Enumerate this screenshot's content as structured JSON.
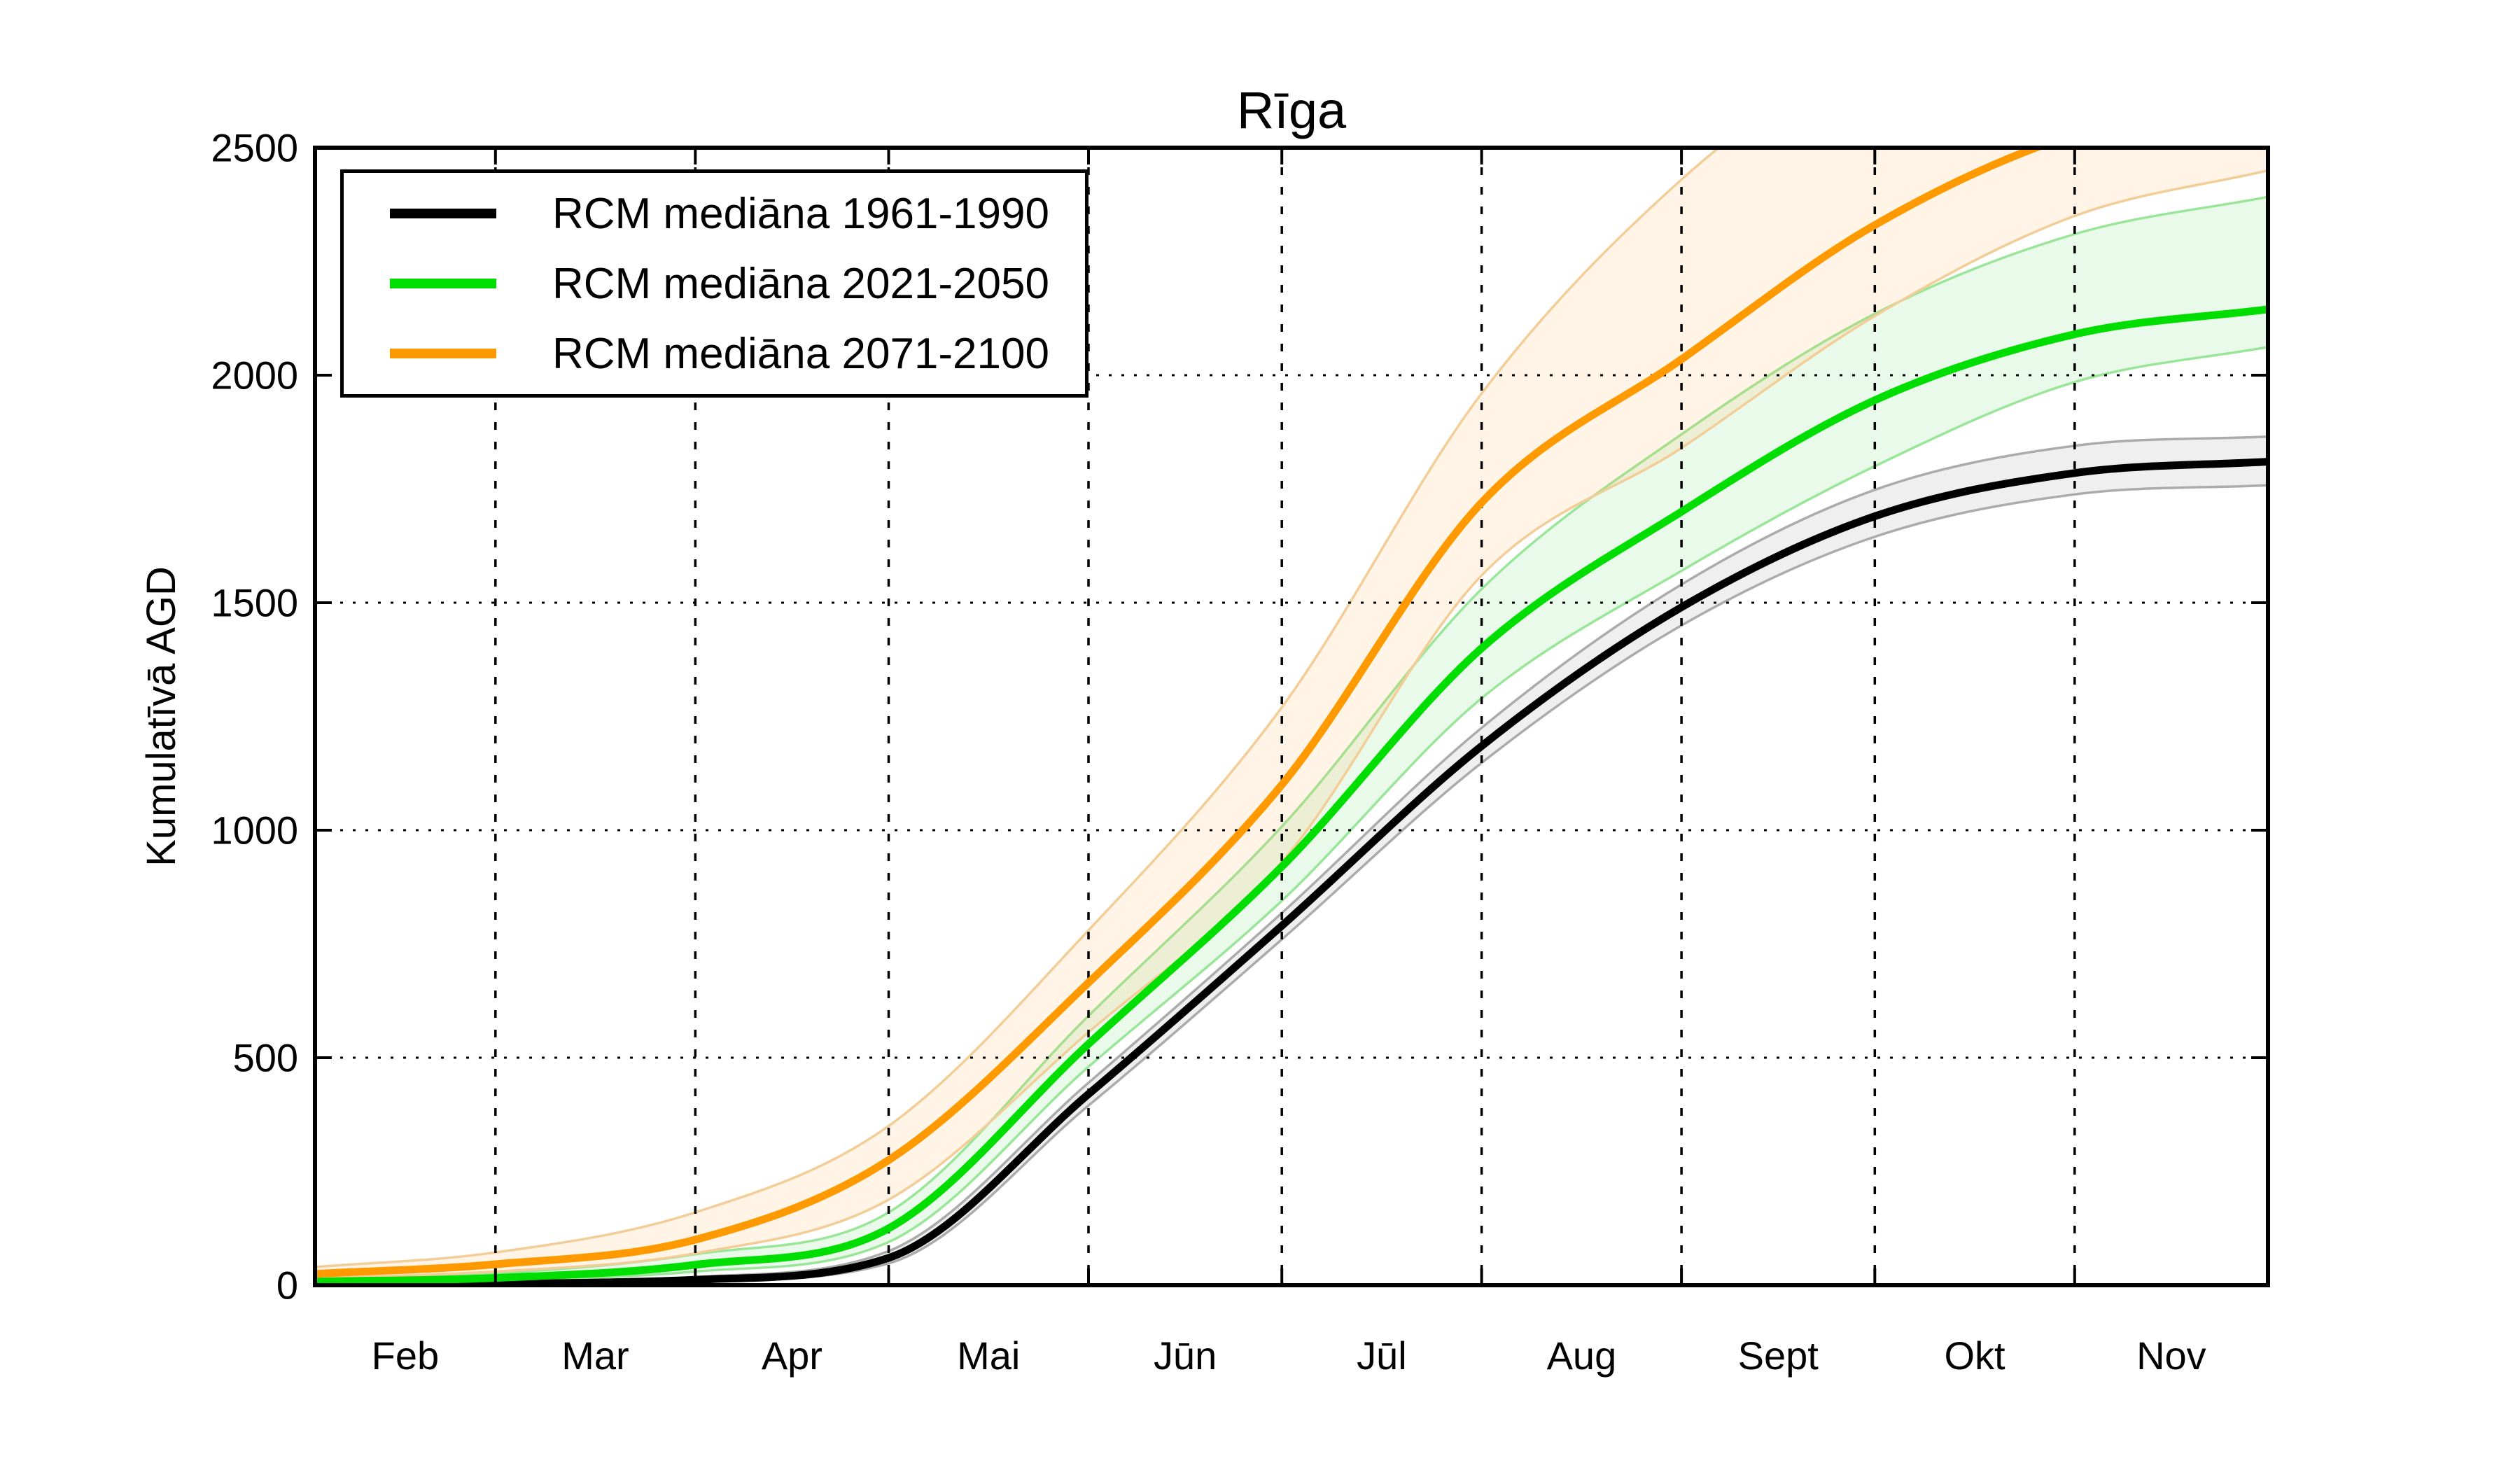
{
  "figure": {
    "title": "Rīga",
    "y_axis": {
      "label": "Kumulatīvā AGD",
      "tick_labels": [
        "0",
        "500",
        "1000",
        "1500",
        "2000",
        "2500"
      ],
      "min": 0,
      "max": 2500
    },
    "x_axis": {
      "month_labels": [
        "Feb",
        "Mar",
        "Apr",
        "Mai",
        "Jūn",
        "Jūl",
        "Aug",
        "Sept",
        "Okt",
        "Nov"
      ]
    },
    "legend": {
      "items": [
        {
          "label": "RCM mediāna 1961-1990",
          "color": "#000000"
        },
        {
          "label": "RCM mediāna 2021-2050",
          "color": "#00dd00"
        },
        {
          "label": "RCM mediāna 2071-2100",
          "color": "#ff9900"
        }
      ]
    }
  },
  "chart_data": {
    "type": "line",
    "title": "Rīga",
    "xlabel": "",
    "ylabel": "Kumulatīvā AGD",
    "ylim": [
      0,
      2500
    ],
    "xlim": [
      "Feb 1",
      "Dec 1"
    ],
    "grid": true,
    "grid_style": "dotted",
    "legend_position": "upper left",
    "x_tick_months": [
      "Feb",
      "Mar",
      "Apr",
      "Mai",
      "Jūn",
      "Jūl",
      "Aug",
      "Sept",
      "Okt",
      "Nov"
    ],
    "x_sample_labels": [
      "Feb 1",
      "Mar 1",
      "Apr 1",
      "Mai 1",
      "Jūn 1",
      "Jūl 1",
      "Aug 1",
      "Sept 1",
      "Okt 1",
      "Nov 1",
      "Dec 1"
    ],
    "x_sample_days_of_year": [
      32,
      60,
      91,
      121,
      152,
      182,
      213,
      244,
      274,
      305,
      335
    ],
    "series": [
      {
        "name": "RCM mediāna 1961-1990",
        "color": "#000000",
        "band_edge_color": "#ababab",
        "band_fill_color": "rgba(128,128,128,0.13)",
        "values": [
          0,
          3,
          12,
          60,
          420,
          790,
          1185,
          1490,
          1690,
          1785,
          1810
        ],
        "band_lower": [
          0,
          1,
          8,
          48,
          395,
          760,
          1148,
          1450,
          1645,
          1738,
          1758
        ],
        "band_upper": [
          2,
          6,
          18,
          75,
          445,
          818,
          1225,
          1540,
          1748,
          1845,
          1865
        ]
      },
      {
        "name": "RCM mediāna 2021-2050",
        "color": "#00dd00",
        "band_edge_color": "#99e699",
        "band_fill_color": "rgba(80,215,80,0.12)",
        "values": [
          8,
          16,
          45,
          125,
          530,
          920,
          1400,
          1700,
          1945,
          2090,
          2145
        ],
        "band_lower": [
          5,
          10,
          30,
          95,
          480,
          845,
          1290,
          1570,
          1800,
          1985,
          2062
        ],
        "band_upper": [
          13,
          26,
          68,
          160,
          592,
          1008,
          1530,
          1870,
          2135,
          2310,
          2392
        ]
      },
      {
        "name": "RCM mediāna 2071-2100",
        "color": "#ff9900",
        "band_edge_color": "#f2cd97",
        "band_fill_color": "rgba(255,170,60,0.13)",
        "values": [
          25,
          46,
          100,
          275,
          665,
          1100,
          1720,
          2035,
          2330,
          2530,
          2610
        ],
        "band_lower": [
          15,
          30,
          70,
          188,
          556,
          930,
          1560,
          1840,
          2130,
          2350,
          2450
        ],
        "band_upper": [
          40,
          72,
          160,
          350,
          780,
          1270,
          1960,
          2430,
          2740,
          2980,
          3080
        ]
      }
    ]
  }
}
